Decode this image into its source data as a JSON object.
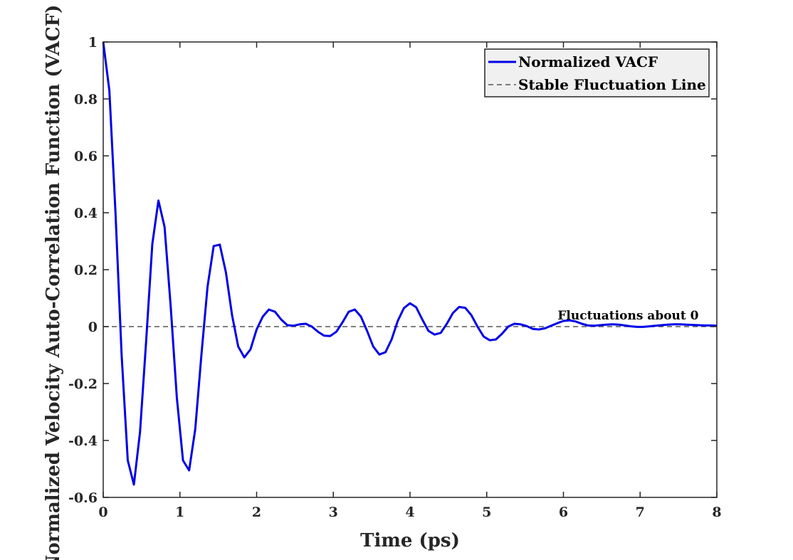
{
  "chart_data": {
    "type": "line",
    "title": "",
    "xlabel": "Time (ps)",
    "ylabel": "Normalized Velocity Auto-Correlation Function (VACF)",
    "xlim": [
      0,
      8
    ],
    "ylim": [
      -0.6,
      1
    ],
    "xticks": [
      0,
      1,
      2,
      3,
      4,
      5,
      6,
      7,
      8
    ],
    "xtick_labels": [
      "0",
      "1",
      "2",
      "3",
      "4",
      "5",
      "6",
      "7",
      "8"
    ],
    "yticks": [
      -0.6,
      -0.4,
      -0.2,
      0,
      0.2,
      0.4,
      0.6,
      0.8,
      1
    ],
    "ytick_labels": [
      "-0.6",
      "-0.4",
      "-0.2",
      "0",
      "0.2",
      "0.4",
      "0.6",
      "0.8",
      "1"
    ],
    "grid": false,
    "legend_position": "top-right",
    "series": [
      {
        "name": "Normalized VACF",
        "color": "#0000e6",
        "style": "solid",
        "x": [
          0,
          0.08,
          0.16,
          0.24,
          0.32,
          0.4,
          0.48,
          0.56,
          0.64,
          0.72,
          0.8,
          0.88,
          0.96,
          1.04,
          1.12,
          1.2,
          1.28,
          1.36,
          1.44,
          1.52,
          1.6,
          1.68,
          1.76,
          1.84,
          1.92,
          2.0,
          2.08,
          2.16,
          2.24,
          2.32,
          2.4,
          2.48,
          2.56,
          2.64,
          2.72,
          2.8,
          2.88,
          2.96,
          3.04,
          3.12,
          3.2,
          3.28,
          3.36,
          3.44,
          3.52,
          3.6,
          3.68,
          3.76,
          3.84,
          3.92,
          4.0,
          4.08,
          4.16,
          4.24,
          4.32,
          4.4,
          4.48,
          4.56,
          4.64,
          4.72,
          4.8,
          4.88,
          4.96,
          5.04,
          5.12,
          5.2,
          5.28,
          5.36,
          5.44,
          5.52,
          5.6,
          5.68,
          5.76,
          5.84,
          5.92,
          6.0,
          6.08,
          6.16,
          6.24,
          6.32,
          6.4,
          6.48,
          6.56,
          6.64,
          6.72,
          6.8,
          6.88,
          6.96,
          7.04,
          7.12,
          7.2,
          7.28,
          7.36,
          7.44,
          7.52,
          7.6,
          7.68,
          7.76,
          7.84,
          7.92,
          8.0
        ],
        "y": [
          1.0,
          0.83,
          0.4,
          -0.1,
          -0.47,
          -0.555,
          -0.37,
          -0.05,
          0.29,
          0.443,
          0.35,
          0.07,
          -0.25,
          -0.47,
          -0.505,
          -0.36,
          -0.1,
          0.14,
          0.283,
          0.288,
          0.19,
          0.04,
          -0.07,
          -0.108,
          -0.08,
          -0.01,
          0.035,
          0.06,
          0.052,
          0.025,
          0.005,
          0.003,
          0.008,
          0.01,
          0.0,
          -0.018,
          -0.032,
          -0.033,
          -0.018,
          0.015,
          0.052,
          0.06,
          0.035,
          -0.015,
          -0.07,
          -0.098,
          -0.09,
          -0.045,
          0.02,
          0.065,
          0.082,
          0.068,
          0.025,
          -0.015,
          -0.028,
          -0.022,
          0.01,
          0.048,
          0.069,
          0.066,
          0.04,
          0.0,
          -0.035,
          -0.048,
          -0.045,
          -0.025,
          0.0,
          0.01,
          0.008,
          0.002,
          -0.008,
          -0.01,
          -0.006,
          0.003,
          0.012,
          0.02,
          0.022,
          0.018,
          0.01,
          0.004,
          0.003,
          0.005,
          0.007,
          0.008,
          0.007,
          0.004,
          0.001,
          -0.001,
          -0.001,
          0.001,
          0.003,
          0.005,
          0.007,
          0.008,
          0.008,
          0.007,
          0.006,
          0.005,
          0.004,
          0.004,
          0.003
        ]
      },
      {
        "name": "Stable Fluctuation Line",
        "color": "#555555",
        "style": "dashed",
        "x": [
          0,
          8
        ],
        "y": [
          0,
          0
        ]
      }
    ],
    "annotations": [
      {
        "text": "Fluctuations about 0",
        "x": 5.98,
        "y": 0.0
      }
    ]
  }
}
